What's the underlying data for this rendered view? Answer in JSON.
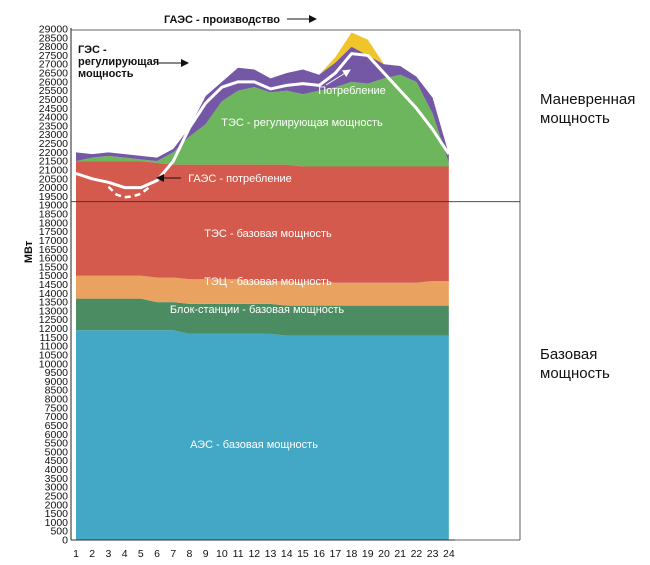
{
  "chart_data": {
    "type": "area",
    "ylabel": "МВт",
    "ylim": [
      0,
      29000
    ],
    "ytick_step": 500,
    "x": [
      1,
      2,
      3,
      4,
      5,
      6,
      7,
      8,
      9,
      10,
      11,
      12,
      13,
      14,
      15,
      16,
      17,
      18,
      19,
      20,
      21,
      22,
      23,
      24
    ],
    "stacked_layers": [
      {
        "name": "АЭС - базовая мощность",
        "color": "#43a7c6",
        "label_x": 12.5,
        "label_y": 5200,
        "top": [
          11900,
          11900,
          11900,
          11900,
          11900,
          11900,
          11900,
          11700,
          11700,
          11700,
          11700,
          11700,
          11700,
          11600,
          11600,
          11600,
          11600,
          11600,
          11600,
          11600,
          11600,
          11600,
          11600,
          11600
        ]
      },
      {
        "name": "Блок-станции - базовая мощность",
        "color": "#4c8c63",
        "label_x": 12.5,
        "label_y": 12600,
        "top": [
          13700,
          13700,
          13700,
          13700,
          13700,
          13500,
          13500,
          13400,
          13400,
          13400,
          13400,
          13400,
          13400,
          13300,
          13300,
          13300,
          13300,
          13300,
          13300,
          13300,
          13300,
          13300,
          13300,
          13300
        ]
      },
      {
        "name": "ТЭЦ - базовая мощность",
        "color": "#e9a25f",
        "label_x": 13,
        "label_y": 14000,
        "top": [
          15000,
          15000,
          15000,
          15000,
          15000,
          14900,
          14900,
          14800,
          14800,
          14800,
          14800,
          14700,
          14700,
          14700,
          14600,
          14600,
          14600,
          14600,
          14600,
          14600,
          14600,
          14600,
          14700,
          14700
        ]
      },
      {
        "name": "ТЭС - базовая мощность",
        "color": "#d45a4e",
        "label_x": 12.5,
        "label_y": 16900,
        "top": [
          21500,
          21500,
          21500,
          21500,
          21500,
          21400,
          21300,
          21300,
          21300,
          21300,
          21300,
          21300,
          21300,
          21300,
          21200,
          21200,
          21200,
          21200,
          21200,
          21200,
          21200,
          21200,
          21200,
          21200
        ]
      },
      {
        "name": "ТЭС - регулирующая мощность",
        "color": "#6eb65d",
        "label_x": 13.5,
        "label_y": 23400,
        "top": [
          21500,
          21700,
          21800,
          21700,
          21600,
          21500,
          22000,
          22900,
          23600,
          24900,
          25500,
          25700,
          25400,
          25500,
          25300,
          25500,
          25700,
          26000,
          25900,
          26200,
          26400,
          26000,
          24200,
          21400
        ]
      },
      {
        "name": "ГЭС - регулирующая мощность",
        "color": "#7457a5",
        "top": [
          22000,
          21900,
          22000,
          21900,
          21800,
          21700,
          22200,
          23400,
          25200,
          26000,
          26800,
          26700,
          26200,
          26500,
          26700,
          26400,
          27100,
          28000,
          27500,
          27000,
          26900,
          26300,
          25100,
          21900
        ]
      },
      {
        "name": "ГАЭС - производство",
        "color": "#f0c52a",
        "top": [
          22000,
          21900,
          22000,
          21900,
          21800,
          21700,
          22200,
          23400,
          25200,
          26000,
          26800,
          26700,
          26200,
          26500,
          26700,
          26400,
          27400,
          28800,
          28400,
          27000,
          26900,
          26300,
          25100,
          21900
        ]
      }
    ],
    "consumption_line": {
      "name": "Потребление",
      "color": "#ffffff",
      "values": [
        20800,
        20500,
        20300,
        20000,
        20000,
        20400,
        21500,
        23400,
        24800,
        25700,
        26000,
        26000,
        25600,
        25800,
        25900,
        25800,
        26500,
        27600,
        27500,
        26500,
        25500,
        24500,
        23300,
        21900
      ]
    },
    "pumping_line": {
      "name": "ГАЭС - потребление",
      "color": "#ffffff",
      "x": [
        3,
        3.5,
        4,
        4.5,
        5,
        5.5
      ],
      "values": [
        20050,
        19600,
        19450,
        19500,
        19650,
        20000
      ]
    },
    "annotations": {
      "gaes_production": "ГАЭС - производство",
      "ges_line1": "ГЭС -",
      "ges_line2": "регулирующая",
      "ges_line3": "мощность",
      "consumption": "Потребление",
      "gaes_consumption": "ГАЭС - потребление",
      "maneuver_line1": "Маневренная",
      "maneuver_line2": "мощность",
      "base_line1": "Базовая",
      "base_line2": "мощность"
    },
    "split_level": 19200
  }
}
